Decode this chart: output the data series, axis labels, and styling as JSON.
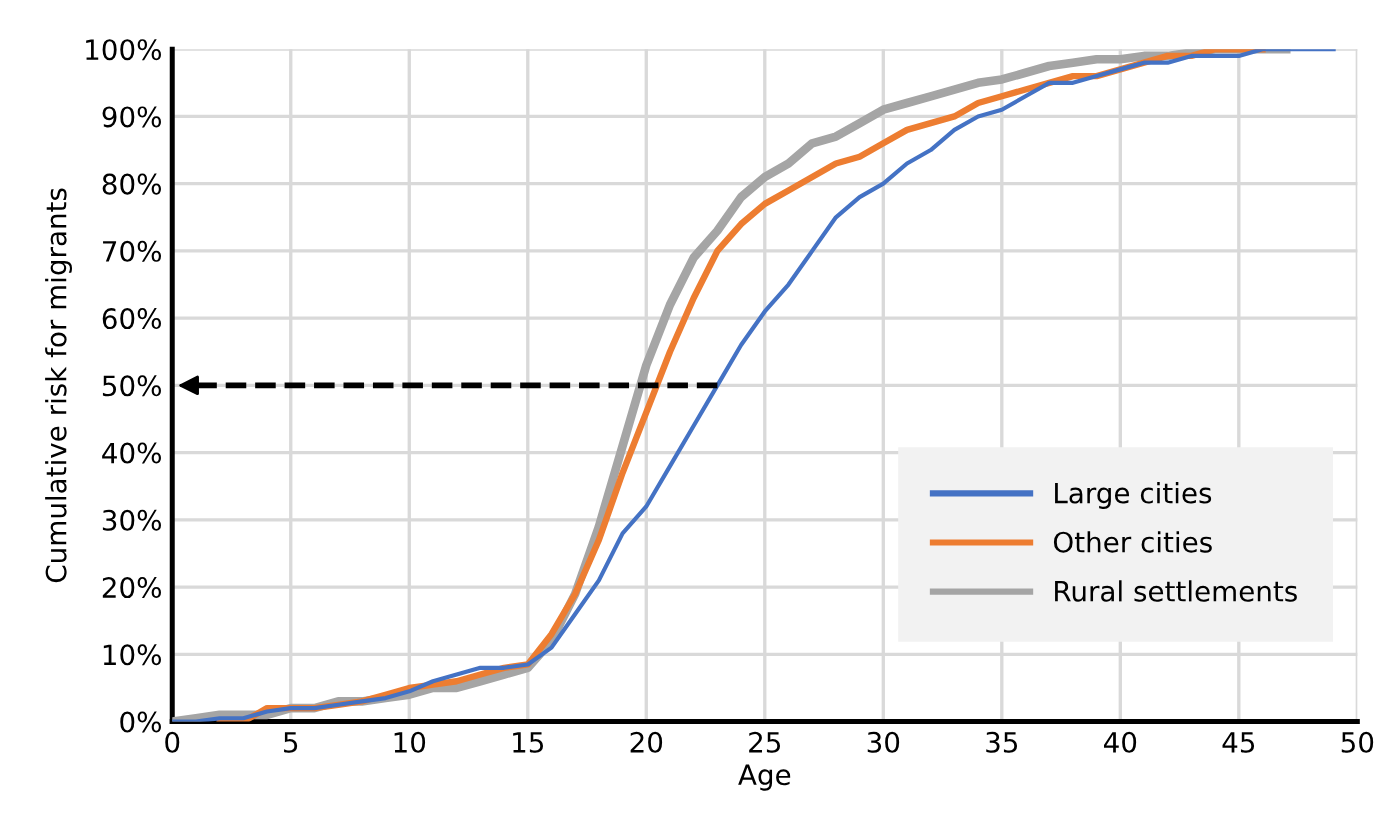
{
  "chart_data": {
    "type": "line",
    "xlabel": "Age",
    "ylabel": "Cumulative risk for migrants",
    "xlim": [
      0,
      50
    ],
    "xticks": [
      0,
      5,
      10,
      15,
      20,
      25,
      30,
      35,
      40,
      45,
      50
    ],
    "ylim": [
      0,
      100
    ],
    "yticks": [
      {
        "value": 0,
        "label": "0%"
      },
      {
        "value": 10,
        "label": "10%"
      },
      {
        "value": 20,
        "label": "20%"
      },
      {
        "value": 30,
        "label": "30%"
      },
      {
        "value": 40,
        "label": "40%"
      },
      {
        "value": 50,
        "label": "50%"
      },
      {
        "value": 60,
        "label": "60%"
      },
      {
        "value": 70,
        "label": "70%"
      },
      {
        "value": 80,
        "label": "80%"
      },
      {
        "value": 90,
        "label": "90%"
      },
      {
        "value": 100,
        "label": "100%"
      }
    ],
    "grid": true,
    "legend": "bottom right",
    "ref_lines": [
      {
        "axis": "y",
        "value": 50,
        "line_style": "dashed",
        "color": "#000000"
      }
    ],
    "series": [
      {
        "name": "Large cities",
        "color": "#4472c4",
        "x": [
          0,
          1,
          2,
          3,
          4,
          5,
          6,
          7,
          8,
          9,
          10,
          11,
          12,
          13,
          14,
          15,
          16,
          17,
          18,
          19,
          20,
          21,
          22,
          23,
          24,
          25,
          26,
          27,
          28,
          29,
          30,
          31,
          32,
          33,
          34,
          35,
          36,
          37,
          38,
          39,
          40,
          41,
          42,
          43,
          44,
          45,
          46,
          49
        ],
        "values": [
          0,
          0,
          0.5,
          0.5,
          1.5,
          2,
          2,
          2.5,
          3,
          3.5,
          4.5,
          6,
          7,
          8,
          8,
          8.5,
          11,
          16,
          21,
          28,
          32,
          38,
          44,
          50,
          56,
          61,
          65,
          70,
          75,
          78,
          80,
          83,
          85,
          88,
          90,
          91,
          93,
          95,
          95,
          96,
          97,
          98,
          98,
          99,
          99,
          99,
          100,
          100
        ]
      },
      {
        "name": "Other cities",
        "color": "#ed7d31",
        "x": [
          2,
          3,
          4,
          5,
          6,
          7,
          8,
          9,
          10,
          11,
          12,
          13,
          14,
          15,
          16,
          17,
          18,
          19,
          20,
          21,
          22,
          23,
          24,
          25,
          26,
          27,
          28,
          29,
          30,
          31,
          32,
          33,
          34,
          35,
          36,
          37,
          38,
          39,
          40,
          41,
          42,
          43,
          44,
          45,
          46
        ],
        "values": [
          0,
          0,
          2,
          2,
          2,
          2.5,
          3,
          4,
          5,
          5.5,
          6,
          7,
          8,
          8.5,
          13,
          19,
          27,
          37,
          46,
          55,
          63,
          70,
          74,
          77,
          79,
          81,
          83,
          84,
          86,
          88,
          89,
          90,
          92,
          93,
          94,
          95,
          96,
          96,
          97,
          98,
          99,
          99,
          100,
          100,
          100
        ]
      },
      {
        "name": "Rural settlements",
        "color": "#a5a5a5",
        "x": [
          0,
          1,
          2,
          3,
          4,
          5,
          6,
          7,
          8,
          9,
          10,
          11,
          12,
          13,
          14,
          15,
          16,
          17,
          18,
          19,
          20,
          21,
          22,
          23,
          24,
          25,
          26,
          27,
          28,
          29,
          30,
          31,
          32,
          33,
          34,
          35,
          36,
          37,
          38,
          39,
          40,
          41,
          42,
          43,
          44,
          45,
          46,
          47
        ],
        "values": [
          0,
          0.5,
          1,
          1,
          1,
          2,
          2,
          3,
          3,
          3.5,
          4,
          5,
          5,
          6,
          7,
          8,
          12,
          19,
          29,
          41,
          53,
          62,
          69,
          73,
          78,
          81,
          83,
          86,
          87,
          89,
          91,
          92,
          93,
          94,
          95,
          95.5,
          96.5,
          97.5,
          98,
          98.5,
          98.5,
          99,
          99,
          99.5,
          100,
          100,
          100,
          100
        ]
      }
    ]
  }
}
